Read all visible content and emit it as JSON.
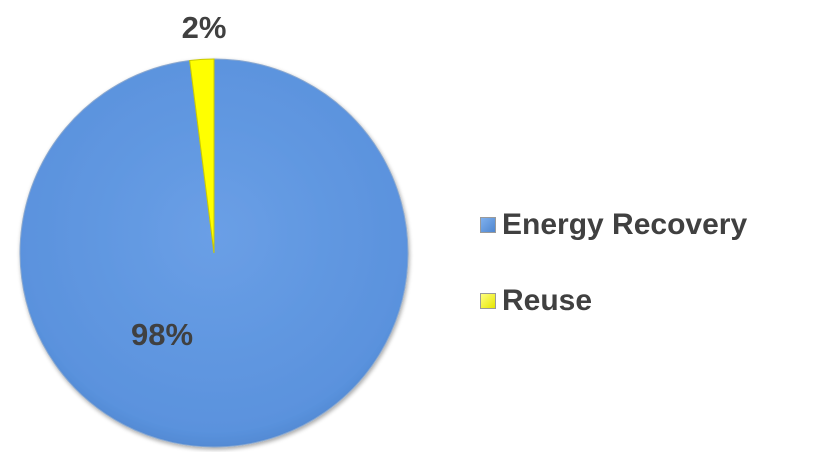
{
  "chart_data": {
    "type": "pie",
    "categories": [
      "Energy Recovery",
      "Reuse"
    ],
    "values": [
      98,
      2
    ],
    "value_labels": [
      "98%",
      "2%"
    ],
    "colors": [
      "#5B93DE",
      "#FFFF00"
    ],
    "legend_position": "right",
    "start_angle_deg": -3.6
  },
  "legend": {
    "items": [
      {
        "label": "Energy Recovery",
        "color": "#5B93DE"
      },
      {
        "label": "Reuse",
        "color": "#FFFF00"
      }
    ]
  }
}
